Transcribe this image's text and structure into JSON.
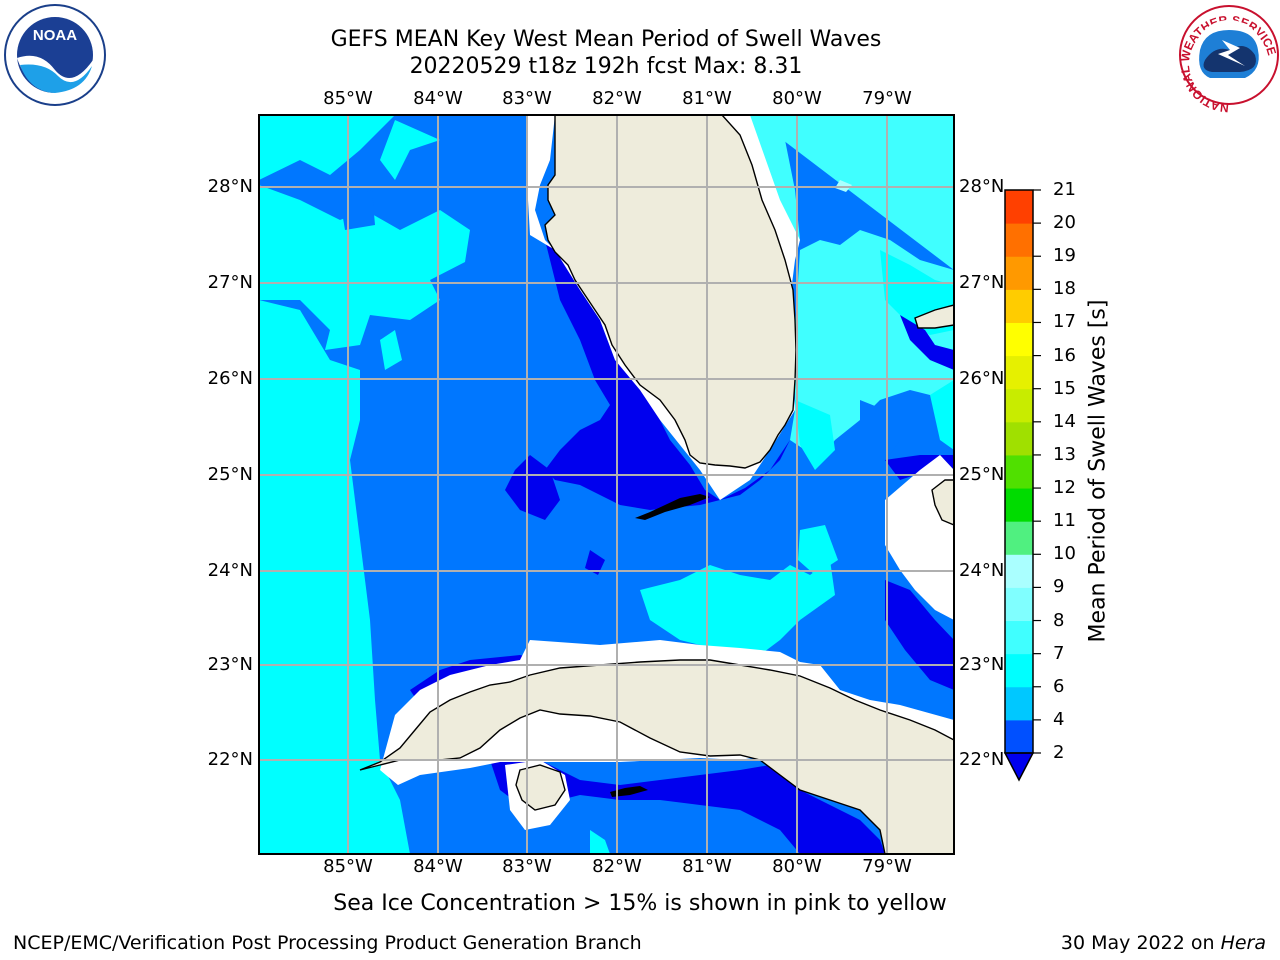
{
  "title_line1": "GEFS MEAN Key West Mean Period of Swell Waves",
  "title_line2": "20220529 t18z 192h fcst   Max: 8.31",
  "longitude_labels": [
    "85°W",
    "84°W",
    "83°W",
    "82°W",
    "81°W",
    "80°W",
    "79°W"
  ],
  "latitude_labels": [
    "28°N",
    "27°N",
    "26°N",
    "25°N",
    "24°N",
    "23°N",
    "22°N"
  ],
  "colorbar": {
    "title": "Mean Period of Swell Waves [s]",
    "ticks": [
      "2",
      "4",
      "6",
      "7",
      "8",
      "9",
      "10",
      "11",
      "12",
      "13",
      "14",
      "15",
      "16",
      "17",
      "18",
      "19",
      "20",
      "21"
    ],
    "colors": [
      "#0050ff",
      "#00c8ff",
      "#00ffff",
      "#40ffff",
      "#80ffff",
      "#aaffff",
      "#50f080",
      "#00dc00",
      "#50e000",
      "#a0e000",
      "#c8ec00",
      "#e6f000",
      "#ffff00",
      "#ffcc00",
      "#ff9900",
      "#ff7000",
      "#ff4000",
      "#ff0000"
    ],
    "under_color": "#0000ee"
  },
  "legend_colors": {
    "deep_blue": "#0000ee",
    "medium_blue": "#0077ff",
    "cyan": "#00ffff",
    "light_cyan": "#40ffff",
    "land": "#eeecdc"
  },
  "note": "Sea Ice Concentration > 15% is shown in pink to yellow",
  "footer_left": "NCEP/EMC/Verification Post Processing Product Generation Branch",
  "footer_right_date": "30 May 2022 on",
  "footer_right_host": "Hera",
  "logos": {
    "noaa": "NOAA",
    "nws_ring": "NATIONAL WEATHER SERVICE"
  }
}
